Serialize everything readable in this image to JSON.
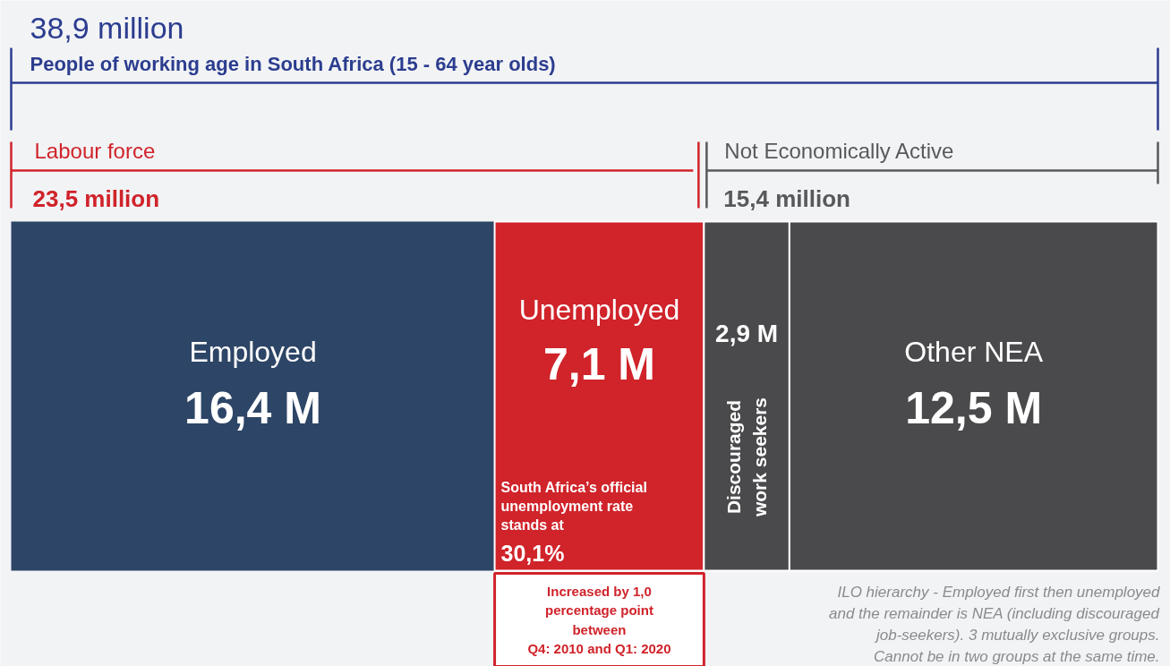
{
  "chart_data": {
    "type": "bar",
    "orientation": "horizontal",
    "stacked": true,
    "tick_labels": false,
    "title": "38,9 million",
    "subtitle": "People of working age in South Africa (15 - 64 year olds)",
    "categories": [
      null
    ],
    "series": [
      {
        "name": "Employed",
        "color": "#2d4566",
        "values": [
          16.4
        ],
        "value_labels": [
          "16,4 M"
        ]
      },
      {
        "name": "Unemployed",
        "color": "#d0232a",
        "values": [
          7.1
        ],
        "value_labels": [
          "7,1 M"
        ]
      },
      {
        "name": "Discouraged\nwork seekers",
        "color": "#4a4a4c",
        "values": [
          2.9
        ],
        "value_labels": [
          "2,9 M"
        ]
      },
      {
        "name": "Other NEA",
        "color": "#4a4a4c",
        "values": [
          12.5
        ],
        "value_labels": [
          "12,5 M"
        ]
      }
    ],
    "annotations": [
      "Labour force",
      "23,5 million",
      "Not Economically Active",
      "15,4 million",
      "South Africa’s official\nunemployment rate\nstands at",
      "30,1%",
      "Increased by 1,0\npercentage point\nbetween\nQ4: 2010 and Q1: 2020",
      "ILO hierarchy - Employed first then unemployed\nand the remainder is NEA (including discouraged\njob-seekers). 3 mutually exclusive groups.\nCannot be in two groups at the same time."
    ]
  }
}
